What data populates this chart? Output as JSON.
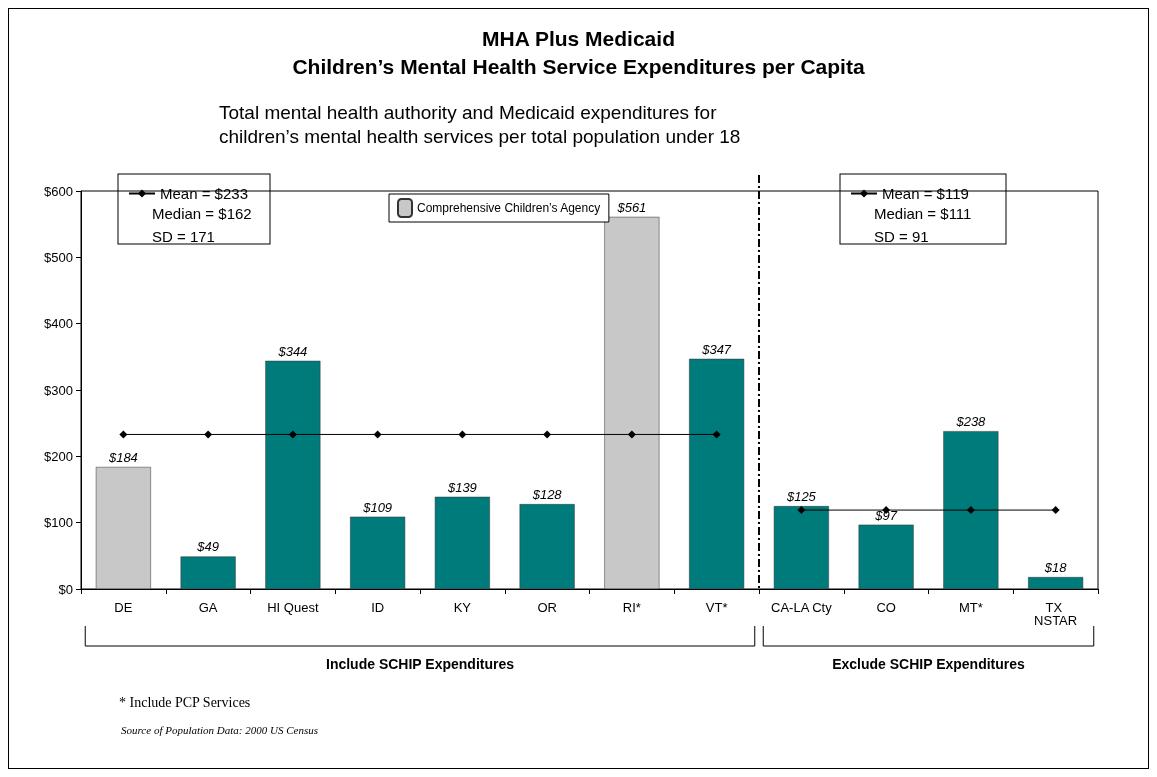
{
  "chart_data": {
    "type": "bar",
    "title": "MHA Plus Medicaid\nChildren’s Mental Health Service Expenditures per Capita",
    "subtitle": "Total mental health authority and Medicaid expenditures for\nchildren’s mental health services per total population under 18",
    "categories": [
      "DE",
      "GA",
      "HI Quest",
      "ID",
      "KY",
      "OR",
      "RI*",
      "VT*",
      "CA-LA Cty",
      "CO",
      "MT*",
      "TX NSTAR"
    ],
    "series": [
      {
        "name": "Comprehensive Children’s Agency",
        "color": "#c8c8c8",
        "values": [
          184,
          null,
          null,
          null,
          null,
          null,
          561,
          null,
          null,
          null,
          null,
          null
        ],
        "value_labels": [
          "$184",
          null,
          null,
          null,
          null,
          null,
          "$561",
          null,
          null,
          null,
          null,
          null
        ]
      },
      {
        "color": "#007b7b",
        "values": [
          null,
          49,
          344,
          109,
          139,
          128,
          null,
          347,
          125,
          97,
          238,
          18
        ],
        "value_labels": [
          null,
          "$49",
          "$344",
          "$109",
          "$139",
          "$128",
          null,
          "$347",
          "$125",
          "$97",
          "$238",
          "$18"
        ]
      },
      {
        "type": "line",
        "name": "Mean = $233",
        "color": "#000000",
        "values": [
          233,
          233,
          233,
          233,
          233,
          233,
          233,
          233,
          null,
          null,
          null,
          null
        ]
      },
      {
        "type": "line",
        "name": "Mean = $119",
        "color": "#000000",
        "values": [
          null,
          null,
          null,
          null,
          null,
          null,
          null,
          null,
          119,
          119,
          119,
          119
        ]
      }
    ],
    "ylim": [
      0,
      600
    ],
    "yticks": [
      {
        "value": 0,
        "label": "$0"
      },
      {
        "value": 100,
        "label": "$100"
      },
      {
        "value": 200,
        "label": "$200"
      },
      {
        "value": 300,
        "label": "$300"
      },
      {
        "value": 400,
        "label": "$400"
      },
      {
        "value": 500,
        "label": "$500"
      },
      {
        "value": 600,
        "label": "$600"
      }
    ],
    "ref_lines": [
      {
        "axis": "x",
        "value": "CA-LA Cty",
        "color": "#000000",
        "line_style": "dashed"
      }
    ],
    "marker": "diamond",
    "legend": "top",
    "grid": false,
    "annotations": [
      "Median = $162",
      "SD = 171",
      "Median = $111",
      "SD = 91",
      "Include SCHIP Expenditures",
      "Exclude SCHIP Expenditures",
      "* Include PCP Services",
      "Source of Population Data: 2000 US Census"
    ]
  }
}
